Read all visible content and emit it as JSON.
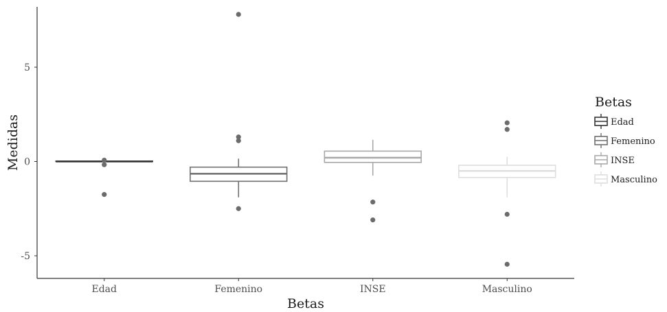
{
  "chart_data": {
    "type": "boxplot",
    "xlabel": "Betas",
    "ylabel": "Medidas",
    "ylim": [
      -6.2,
      8.2
    ],
    "yticks": [
      -5,
      0,
      5
    ],
    "ytick_labels": [
      "-5",
      "0",
      "5"
    ],
    "grid": false,
    "legend": {
      "title": "Betas",
      "position": "right"
    },
    "categories": [
      "Edad",
      "Femenino",
      "INSE",
      "Masculino"
    ],
    "boxes": [
      {
        "name": "Edad",
        "color": "#333333",
        "whisker_low": 0.0,
        "q1": 0.0,
        "median": 0.0,
        "q3": 0.02,
        "whisker_high": 0.02,
        "outliers": [
          0.07,
          -0.17,
          -1.75
        ]
      },
      {
        "name": "Femenino",
        "color": "#6e6e6e",
        "whisker_low": -1.9,
        "q1": -1.05,
        "median": -0.65,
        "q3": -0.3,
        "whisker_high": 0.15,
        "outliers": [
          7.8,
          1.3,
          1.1,
          -2.5
        ]
      },
      {
        "name": "INSE",
        "color": "#a8a8a8",
        "whisker_low": -0.75,
        "q1": -0.05,
        "median": 0.2,
        "q3": 0.55,
        "whisker_high": 1.15,
        "outliers": [
          -2.15,
          -3.1
        ]
      },
      {
        "name": "Masculino",
        "color": "#dedede",
        "whisker_low": -1.9,
        "q1": -0.85,
        "median": -0.5,
        "q3": -0.2,
        "whisker_high": 0.25,
        "outliers": [
          2.05,
          1.7,
          -2.8,
          -5.45
        ]
      }
    ],
    "outlier_color": "#6b6b6b"
  }
}
